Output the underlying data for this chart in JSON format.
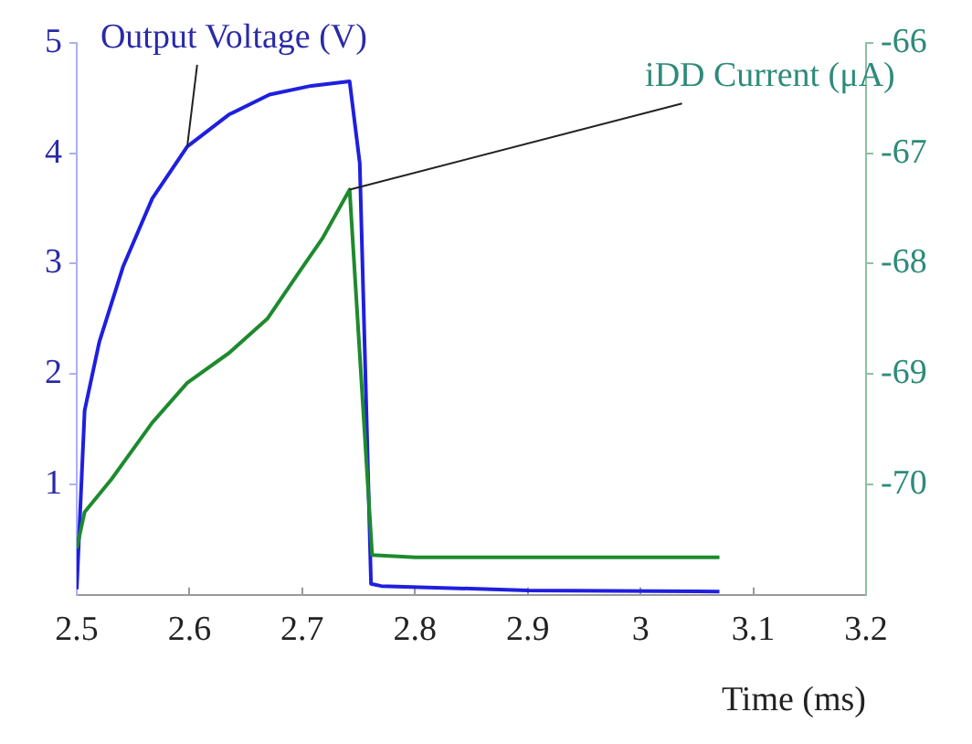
{
  "chart_data": {
    "type": "line",
    "xlabel": "Time (ms)",
    "xlim": [
      2.5,
      3.2
    ],
    "xticks": [
      2.5,
      2.6,
      2.7,
      2.8,
      2.9,
      3,
      3.1,
      3.2
    ],
    "ylim": [
      0,
      5
    ],
    "yticks": [
      1,
      2,
      3,
      4,
      5
    ],
    "y2lim": [
      -71,
      -66
    ],
    "y2ticks": [
      -70,
      -69,
      -68,
      -67,
      -66
    ],
    "grid": false,
    "legend": false,
    "marker": "none",
    "line_style": "solid",
    "series": [
      {
        "name": "Output Voltage (V)",
        "color": "#1f1fe0",
        "axis": "y",
        "x": [
          2.5,
          2.507,
          2.52,
          2.541,
          2.567,
          2.598,
          2.635,
          2.671,
          2.708,
          2.742,
          2.751,
          2.761,
          2.77,
          2.9,
          3.07
        ],
        "values": [
          0.05,
          1.67,
          2.29,
          2.97,
          3.59,
          4.06,
          4.35,
          4.53,
          4.61,
          4.65,
          3.91,
          0.1,
          0.08,
          0.04,
          0.03
        ]
      },
      {
        "name": "iDD Current (μA)",
        "color": "#1e8a2e",
        "axis": "y2",
        "x": [
          2.5,
          2.507,
          2.531,
          2.567,
          2.598,
          2.635,
          2.669,
          2.697,
          2.718,
          2.742,
          2.762,
          2.8,
          3.07
        ],
        "values": [
          -70.58,
          -70.25,
          -69.95,
          -69.44,
          -69.08,
          -68.81,
          -68.5,
          -68.08,
          -67.77,
          -67.33,
          -70.64,
          -70.66,
          -70.66
        ]
      }
    ]
  }
}
